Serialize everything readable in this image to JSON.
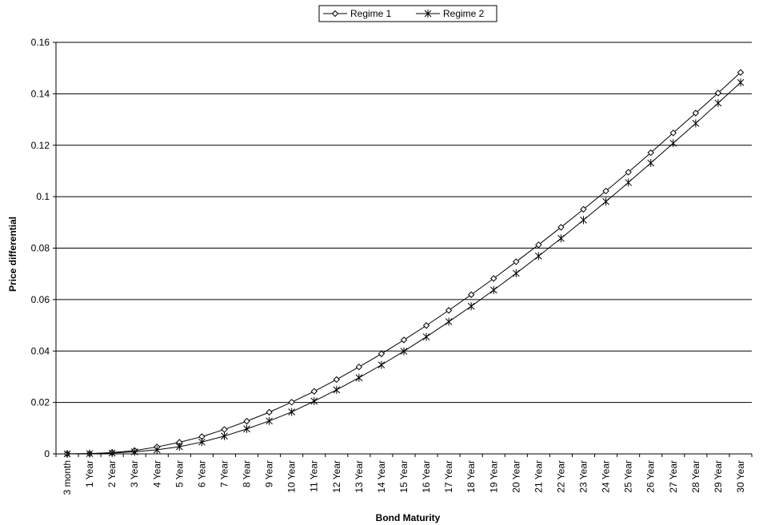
{
  "chart_data": {
    "type": "line",
    "xlabel": "Bond Maturity",
    "ylabel": "Price differential",
    "ylim": [
      0,
      0.16
    ],
    "yticks": [
      "0",
      "0.02",
      "0.04",
      "0.06",
      "0.08",
      "0.1",
      "0.12",
      "0.14",
      "0.16"
    ],
    "grid": "horizontal",
    "legend_position": "top-center",
    "categories": [
      "3 month",
      "1 Year",
      "2 Year",
      "3 Year",
      "4 Year",
      "5 Year",
      "6 Year",
      "7 Year",
      "8 Year",
      "9 Year",
      "10 Year",
      "11 Year",
      "12 Year",
      "13 Year",
      "14 Year",
      "15 Year",
      "16 Year",
      "17 Year",
      "18 Year",
      "19 Year",
      "20 Year",
      "21 Year",
      "22 Year",
      "23 Year",
      "24 Year",
      "25 Year",
      "26 Year",
      "27 Year",
      "28 Year",
      "29 Year",
      "30 Year"
    ],
    "series": [
      {
        "name": "Regime 1",
        "marker": "diamond",
        "values": [
          0.0,
          0.0001,
          0.0005,
          0.0013,
          0.0027,
          0.0045,
          0.0067,
          0.0095,
          0.0127,
          0.0162,
          0.0201,
          0.0243,
          0.0289,
          0.0338,
          0.0389,
          0.0443,
          0.0499,
          0.0558,
          0.0619,
          0.0682,
          0.0747,
          0.0813,
          0.0881,
          0.0951,
          0.1022,
          0.1095,
          0.1171,
          0.1248,
          0.1325,
          0.1403,
          0.1483
        ]
      },
      {
        "name": "Regime 2",
        "marker": "asterisk",
        "values": [
          0.0,
          0.0001,
          0.0003,
          0.0008,
          0.0016,
          0.0028,
          0.0046,
          0.0069,
          0.0097,
          0.0128,
          0.0163,
          0.0205,
          0.0249,
          0.0296,
          0.0346,
          0.0399,
          0.0455,
          0.0514,
          0.0574,
          0.0637,
          0.0702,
          0.0769,
          0.0838,
          0.0909,
          0.0981,
          0.1055,
          0.1131,
          0.1208,
          0.1285,
          0.1364,
          0.1444
        ]
      }
    ]
  }
}
